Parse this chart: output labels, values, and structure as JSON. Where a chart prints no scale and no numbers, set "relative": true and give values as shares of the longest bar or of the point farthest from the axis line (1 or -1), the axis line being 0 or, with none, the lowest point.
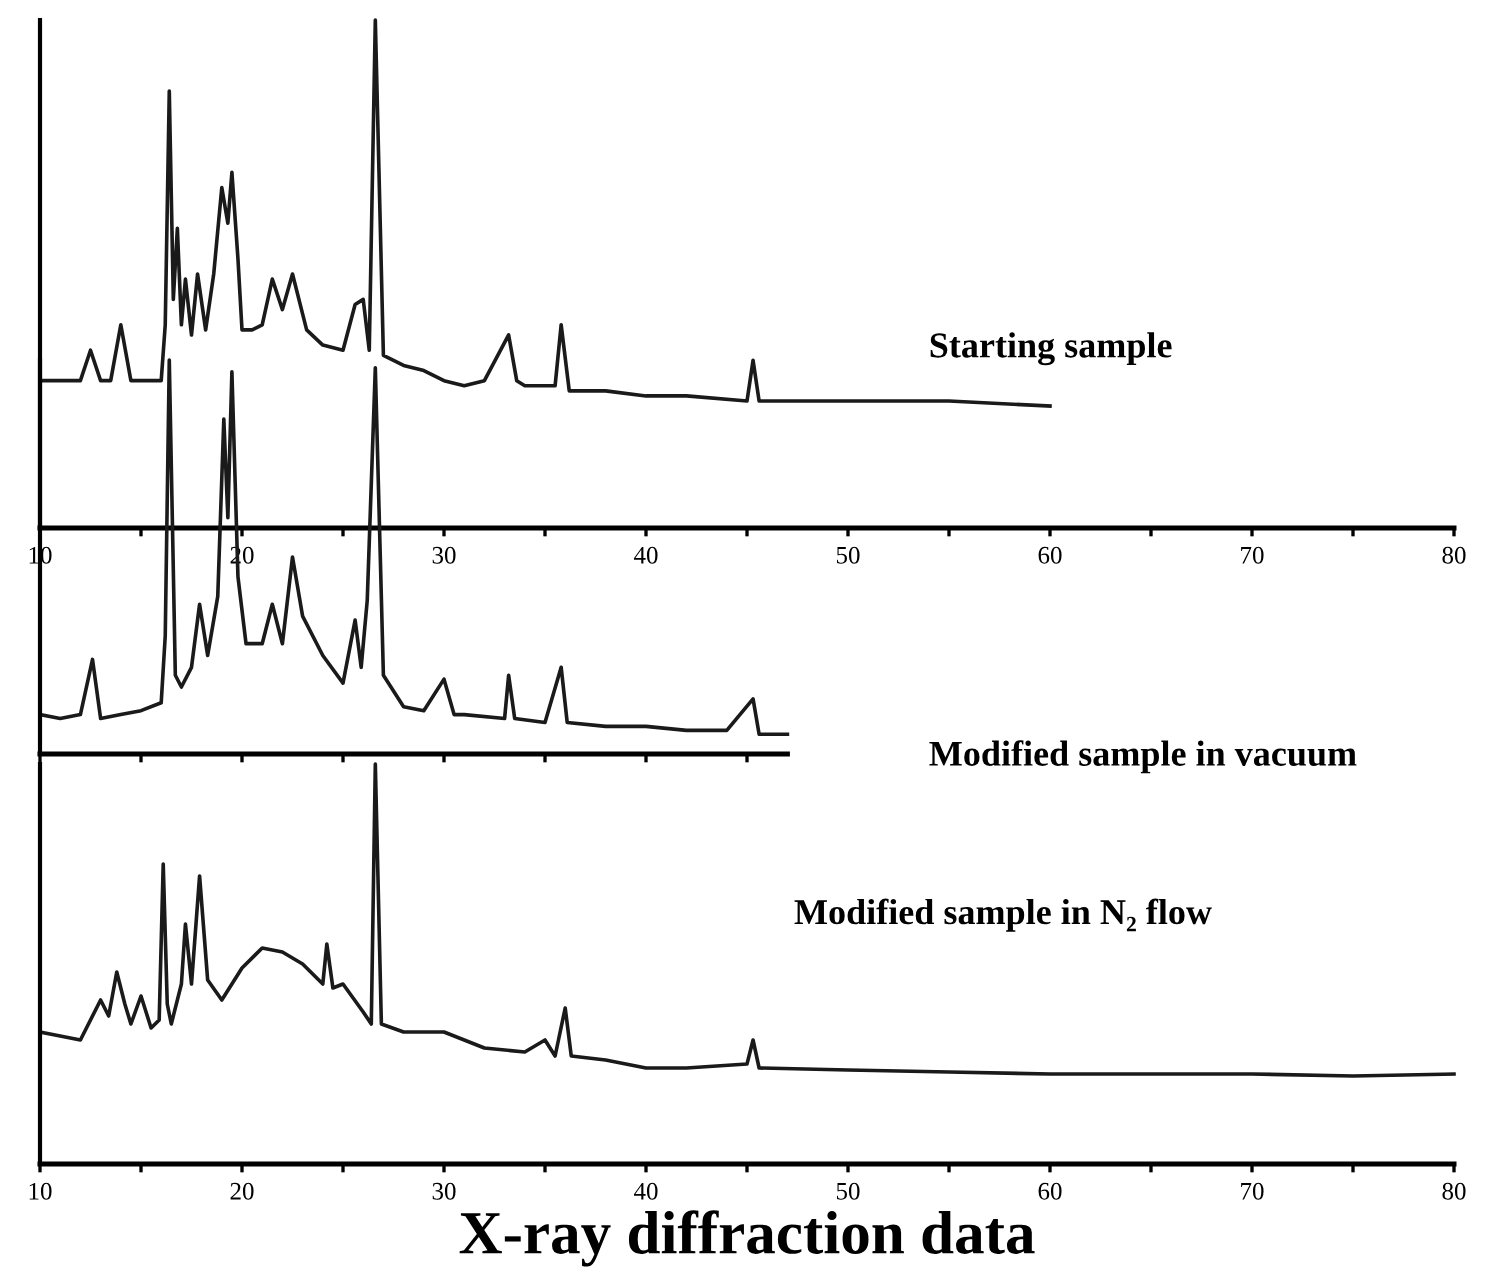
{
  "chart_data": [
    {
      "type": "line",
      "relative": true,
      "xlim": [
        10,
        80
      ],
      "xticks": [
        10,
        {
          "value": 15,
          "label": null
        },
        20,
        {
          "value": 25,
          "label": null
        },
        30,
        {
          "value": 35,
          "label": null
        },
        40,
        {
          "value": 45,
          "label": null
        },
        50,
        {
          "value": 55,
          "label": null
        },
        60,
        {
          "value": 65,
          "label": null
        },
        70,
        {
          "value": 75,
          "label": null
        },
        80
      ],
      "tick_labels": "x",
      "annotations": [
        "Starting sample"
      ],
      "series": [
        {
          "color": "#1a1a1a",
          "x": [
            10,
            11,
            12,
            12.5,
            13,
            13.5,
            14,
            14.5,
            15,
            16,
            16.2,
            16.4,
            16.6,
            16.8,
            17,
            17.2,
            17.5,
            17.8,
            18.2,
            18.6,
            19,
            19.3,
            19.5,
            19.8,
            20,
            20.5,
            21,
            21.5,
            22,
            22.5,
            23.2,
            24,
            25,
            25.6,
            26,
            26.3,
            26.6,
            27,
            28,
            29,
            30,
            31,
            32,
            33.2,
            33.6,
            34,
            35.5,
            35.8,
            36.2,
            38,
            40,
            42,
            45,
            45.3,
            45.6,
            50,
            55,
            60
          ],
          "values": [
            0.29,
            0.29,
            0.29,
            0.35,
            0.29,
            0.29,
            0.4,
            0.29,
            0.29,
            0.29,
            0.4,
            0.86,
            0.45,
            0.59,
            0.4,
            0.49,
            0.38,
            0.5,
            0.39,
            0.5,
            0.67,
            0.6,
            0.7,
            0.53,
            0.39,
            0.39,
            0.4,
            0.49,
            0.43,
            0.5,
            0.39,
            0.36,
            0.35,
            0.44,
            0.45,
            0.35,
            1.0,
            0.34,
            0.32,
            0.31,
            0.29,
            0.28,
            0.29,
            0.38,
            0.29,
            0.28,
            0.28,
            0.4,
            0.27,
            0.27,
            0.26,
            0.26,
            0.25,
            0.33,
            0.25,
            0.25,
            0.25,
            0.24
          ]
        }
      ]
    },
    {
      "type": "line",
      "relative": true,
      "xlim": [
        10,
        47
      ],
      "xticks": [
        10,
        {
          "value": 15,
          "label": null
        },
        20,
        {
          "value": 25,
          "label": null
        },
        30,
        {
          "value": 35,
          "label": null
        },
        40,
        {
          "value": 45,
          "label": null
        }
      ],
      "tick_labels": false,
      "annotations": [
        "Modified sample in vacuum"
      ],
      "series": [
        {
          "color": "#1a1a1a",
          "x": [
            10,
            11,
            12,
            12.6,
            13,
            14,
            15,
            16,
            16.2,
            16.4,
            16.7,
            17,
            17.5,
            17.9,
            18.3,
            18.8,
            19.1,
            19.3,
            19.5,
            19.8,
            20.2,
            21,
            21.5,
            22,
            22.5,
            23,
            24,
            25,
            25.6,
            25.9,
            26.2,
            26.6,
            27,
            28,
            29,
            30,
            30.5,
            31,
            33,
            33.2,
            33.5,
            35,
            35.8,
            36.1,
            38,
            40,
            42,
            44,
            45.3,
            45.6,
            47
          ],
          "values": [
            0.1,
            0.09,
            0.1,
            0.24,
            0.09,
            0.1,
            0.11,
            0.13,
            0.3,
            1.0,
            0.2,
            0.17,
            0.22,
            0.38,
            0.25,
            0.4,
            0.85,
            0.6,
            0.97,
            0.45,
            0.28,
            0.28,
            0.38,
            0.28,
            0.5,
            0.35,
            0.25,
            0.18,
            0.34,
            0.22,
            0.39,
            0.98,
            0.2,
            0.12,
            0.11,
            0.19,
            0.1,
            0.1,
            0.09,
            0.2,
            0.09,
            0.08,
            0.22,
            0.08,
            0.07,
            0.07,
            0.06,
            0.06,
            0.14,
            0.05,
            0.05
          ]
        }
      ]
    },
    {
      "type": "line",
      "relative": true,
      "xlim": [
        10,
        80
      ],
      "xticks": [
        10,
        {
          "value": 15,
          "label": null
        },
        20,
        {
          "value": 25,
          "label": null
        },
        30,
        {
          "value": 35,
          "label": null
        },
        40,
        {
          "value": 45,
          "label": null
        },
        50,
        {
          "value": 55,
          "label": null
        },
        60,
        {
          "value": 65,
          "label": null
        },
        70,
        {
          "value": 75,
          "label": null
        },
        80
      ],
      "xlabel": "X-ray diffraction data",
      "annotations": [
        "Modified sample in N₂ flow"
      ],
      "series": [
        {
          "color": "#1a1a1a",
          "x": [
            10,
            11,
            12,
            13,
            13.4,
            13.8,
            14.2,
            14.5,
            15,
            15.5,
            15.9,
            16.1,
            16.3,
            16.5,
            17,
            17.2,
            17.5,
            17.9,
            18.3,
            19,
            20,
            21,
            22,
            23,
            24,
            24.2,
            24.5,
            25,
            26,
            26.4,
            26.6,
            26.9,
            28,
            30,
            32,
            34,
            35,
            35.5,
            36,
            36.3,
            38,
            40,
            42,
            45,
            45.3,
            45.6,
            50,
            55,
            60,
            65,
            70,
            75,
            80
          ],
          "values": [
            0.33,
            0.32,
            0.31,
            0.41,
            0.37,
            0.48,
            0.4,
            0.35,
            0.42,
            0.34,
            0.36,
            0.75,
            0.4,
            0.35,
            0.45,
            0.6,
            0.45,
            0.72,
            0.46,
            0.41,
            0.49,
            0.54,
            0.53,
            0.5,
            0.45,
            0.55,
            0.44,
            0.45,
            0.38,
            0.35,
            1.0,
            0.35,
            0.33,
            0.33,
            0.29,
            0.28,
            0.31,
            0.27,
            0.39,
            0.27,
            0.26,
            0.24,
            0.24,
            0.25,
            0.31,
            0.24,
            0.235,
            0.23,
            0.225,
            0.225,
            0.225,
            0.22,
            0.225
          ]
        }
      ]
    }
  ]
}
